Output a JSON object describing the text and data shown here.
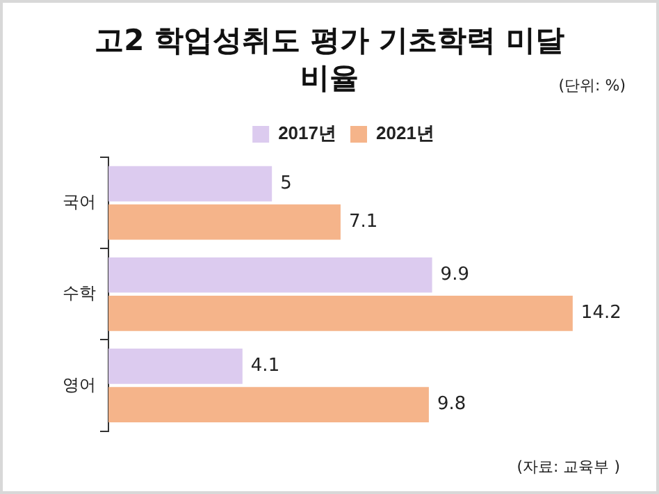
{
  "chart_data": {
    "type": "bar",
    "orientation": "horizontal",
    "title": "고2 학업성취도 평가 기초학력 미달 비율",
    "subtitle": "(단위: %)",
    "categories": [
      "국어",
      "수학",
      "영어"
    ],
    "series": [
      {
        "name": "2017년",
        "color": "#dccbef",
        "values": [
          5,
          9.9,
          4.1
        ]
      },
      {
        "name": "2021년",
        "color": "#f5b48a",
        "values": [
          7.1,
          14.2,
          9.8
        ]
      }
    ],
    "data_labels": true,
    "legend": "top",
    "grid": false,
    "annotations": [
      "(자료: 교육부 )"
    ]
  }
}
